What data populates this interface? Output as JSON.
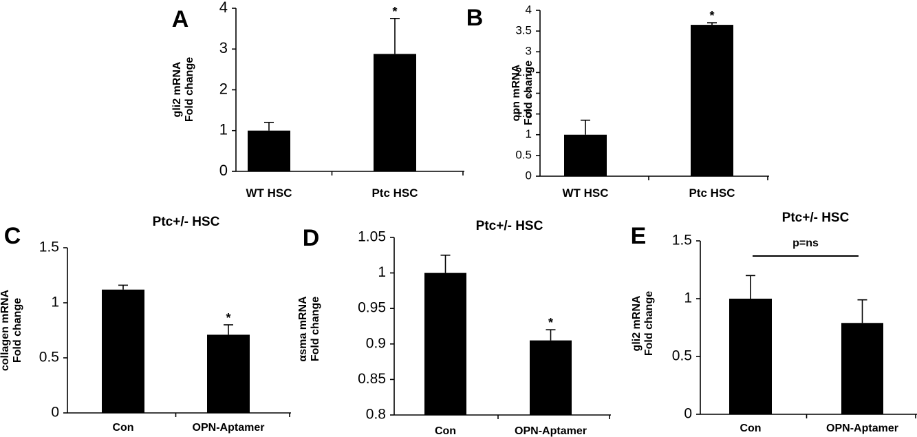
{
  "chart_data": [
    {
      "panel": "A",
      "type": "bar",
      "title": "",
      "ylabel": [
        "gli2 mRNA",
        "Fold change"
      ],
      "categories": [
        "WT HSC",
        "Ptc HSC"
      ],
      "values": [
        1.0,
        2.88
      ],
      "errors": [
        0.2,
        0.87
      ],
      "significance": [
        "",
        "*"
      ],
      "ylim": [
        0,
        4
      ],
      "yticks": [
        "0",
        "1",
        "2",
        "3",
        "4"
      ],
      "ytick_values": [
        0,
        1,
        2,
        3,
        4
      ]
    },
    {
      "panel": "B",
      "type": "bar",
      "title": "",
      "ylabel": [
        "opn mRNA",
        "Fold change"
      ],
      "categories": [
        "WT HSC",
        "Ptc HSC"
      ],
      "values": [
        1.0,
        3.65
      ],
      "errors": [
        0.35,
        0.05
      ],
      "significance": [
        "",
        "*"
      ],
      "ylim": [
        0,
        4
      ],
      "yticks": [
        "0",
        "0.5",
        "1",
        "1.5",
        "2",
        "2.5",
        "3",
        "3.5",
        "4"
      ],
      "ytick_values": [
        0,
        0.5,
        1,
        1.5,
        2,
        2.5,
        3,
        3.5,
        4
      ]
    },
    {
      "panel": "C",
      "type": "bar",
      "title": "Ptc+/- HSC",
      "ylabel": [
        "collagen mRNA",
        "Fold change"
      ],
      "categories": [
        "Con",
        "OPN-Aptamer"
      ],
      "values": [
        1.12,
        0.71
      ],
      "errors": [
        0.04,
        0.09
      ],
      "significance": [
        "",
        "*"
      ],
      "ylim": [
        0,
        1.5
      ],
      "yticks": [
        "0",
        "0.5",
        "1",
        "1.5"
      ],
      "ytick_values": [
        0,
        0.5,
        1,
        1.5
      ]
    },
    {
      "panel": "D",
      "type": "bar",
      "title": "Ptc+/- HSC",
      "ylabel": [
        "αsma mRNA",
        "Fold change"
      ],
      "categories": [
        "Con",
        "OPN-Aptamer"
      ],
      "values": [
        1.0,
        0.905
      ],
      "errors": [
        0.025,
        0.015
      ],
      "significance": [
        "",
        "*"
      ],
      "ylim": [
        0.8,
        1.05
      ],
      "yticks": [
        "0.8",
        "0.85",
        "0.9",
        "0.95",
        "1",
        "1.05"
      ],
      "ytick_values": [
        0.8,
        0.85,
        0.9,
        0.95,
        1.0,
        1.05
      ]
    },
    {
      "panel": "E",
      "type": "bar",
      "title": "Ptc+/- HSC",
      "ylabel": [
        "gli2 mRNA",
        "Fold change"
      ],
      "categories": [
        "Con",
        "OPN-Aptamer"
      ],
      "values": [
        1.0,
        0.79
      ],
      "errors": [
        0.2,
        0.2
      ],
      "significance": [
        "",
        ""
      ],
      "annotation": "p=ns",
      "ylim": [
        0,
        1.5
      ],
      "yticks": [
        "0",
        "0.5",
        "1",
        "1.5"
      ],
      "ytick_values": [
        0,
        0.5,
        1,
        1.5
      ]
    }
  ]
}
